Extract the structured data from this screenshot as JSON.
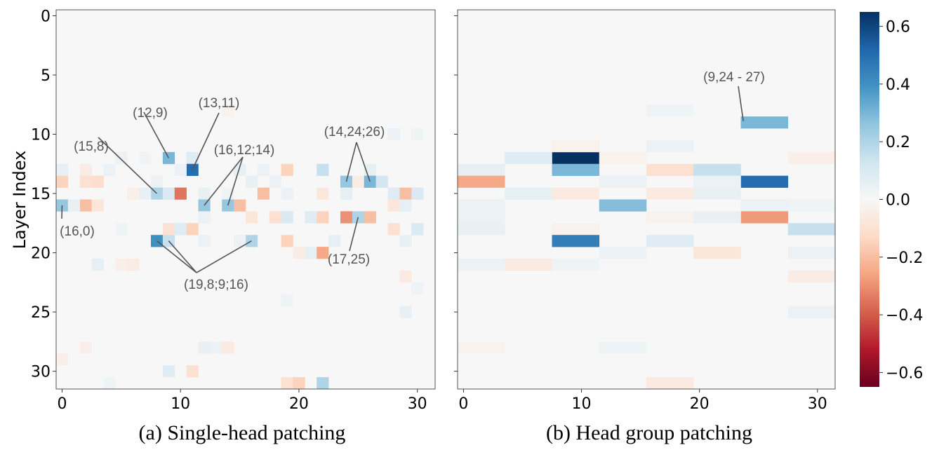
{
  "chart_data": [
    {
      "type": "heatmap",
      "subplot": "a",
      "caption": "(a) Single-head patching",
      "ylabel": "Layer Index",
      "xlabel": "",
      "x_ticks": [
        "0",
        "10",
        "20",
        "30"
      ],
      "y_ticks": [
        "0",
        "5",
        "10",
        "15",
        "20",
        "25",
        "30"
      ],
      "xlim": [
        0,
        31
      ],
      "ylim": [
        0,
        31
      ],
      "background_value": 0.0,
      "cells": [
        {
          "x": 9,
          "y": 12,
          "v": 0.3
        },
        {
          "x": 11,
          "y": 12,
          "v": 0.08
        },
        {
          "x": 5,
          "y": 12,
          "v": 0.04
        },
        {
          "x": 7,
          "y": 12,
          "v": 0.03
        },
        {
          "x": 11,
          "y": 13,
          "v": 0.5
        },
        {
          "x": 0,
          "y": 13,
          "v": 0.05
        },
        {
          "x": 2,
          "y": 13,
          "v": -0.05
        },
        {
          "x": 4,
          "y": 13,
          "v": 0.04
        },
        {
          "x": 10,
          "y": 13,
          "v": 0.04
        },
        {
          "x": 15,
          "y": 13,
          "v": 0.05
        },
        {
          "x": 17,
          "y": 13,
          "v": 0.04
        },
        {
          "x": 19,
          "y": 13,
          "v": -0.15
        },
        {
          "x": 22,
          "y": 13,
          "v": 0.15
        },
        {
          "x": 26,
          "y": 13,
          "v": 0.06
        },
        {
          "x": 0,
          "y": 14,
          "v": -0.15
        },
        {
          "x": 2,
          "y": 14,
          "v": -0.1
        },
        {
          "x": 3,
          "y": 14,
          "v": -0.12
        },
        {
          "x": 24,
          "y": 14,
          "v": 0.25
        },
        {
          "x": 25,
          "y": 14,
          "v": -0.05
        },
        {
          "x": 26,
          "y": 14,
          "v": 0.3
        },
        {
          "x": 27,
          "y": 14,
          "v": 0.12
        },
        {
          "x": 8,
          "y": 14,
          "v": 0.04
        },
        {
          "x": 16,
          "y": 14,
          "v": 0.05
        },
        {
          "x": 18,
          "y": 14,
          "v": 0.04
        },
        {
          "x": 8,
          "y": 15,
          "v": 0.2
        },
        {
          "x": 9,
          "y": 15,
          "v": 0.1
        },
        {
          "x": 10,
          "y": 15,
          "v": -0.35
        },
        {
          "x": 6,
          "y": 15,
          "v": -0.04
        },
        {
          "x": 7,
          "y": 15,
          "v": 0.05
        },
        {
          "x": 12,
          "y": 15,
          "v": 0.05
        },
        {
          "x": 14,
          "y": 15,
          "v": 0.03
        },
        {
          "x": 17,
          "y": 15,
          "v": -0.2
        },
        {
          "x": 19,
          "y": 15,
          "v": 0.04
        },
        {
          "x": 22,
          "y": 15,
          "v": -0.07
        },
        {
          "x": 24,
          "y": 15,
          "v": 0.06
        },
        {
          "x": 28,
          "y": 15,
          "v": 0.08
        },
        {
          "x": 29,
          "y": 15,
          "v": -0.2
        },
        {
          "x": 30,
          "y": 15,
          "v": 0.1
        },
        {
          "x": 0,
          "y": 16,
          "v": 0.25
        },
        {
          "x": 2,
          "y": 16,
          "v": -0.2
        },
        {
          "x": 3,
          "y": 16,
          "v": -0.08
        },
        {
          "x": 1,
          "y": 16,
          "v": 0.05
        },
        {
          "x": 12,
          "y": 16,
          "v": 0.25
        },
        {
          "x": 14,
          "y": 16,
          "v": 0.25
        },
        {
          "x": 15,
          "y": 16,
          "v": -0.2
        },
        {
          "x": 28,
          "y": 16,
          "v": -0.08
        },
        {
          "x": 29,
          "y": 16,
          "v": 0.06
        },
        {
          "x": 24,
          "y": 17,
          "v": -0.3
        },
        {
          "x": 25,
          "y": 17,
          "v": 0.2
        },
        {
          "x": 26,
          "y": 17,
          "v": -0.2
        },
        {
          "x": 16,
          "y": 17,
          "v": -0.08
        },
        {
          "x": 18,
          "y": 17,
          "v": -0.1
        },
        {
          "x": 19,
          "y": 17,
          "v": 0.1
        },
        {
          "x": 21,
          "y": 17,
          "v": 0.08
        },
        {
          "x": 22,
          "y": 17,
          "v": -0.15
        },
        {
          "x": 12,
          "y": 17,
          "v": 0.04
        },
        {
          "x": 9,
          "y": 18,
          "v": -0.1
        },
        {
          "x": 10,
          "y": 18,
          "v": 0.08
        },
        {
          "x": 11,
          "y": 18,
          "v": -0.15
        },
        {
          "x": 28,
          "y": 18,
          "v": -0.1
        },
        {
          "x": 30,
          "y": 18,
          "v": 0.1
        },
        {
          "x": 5,
          "y": 18,
          "v": 0.03
        },
        {
          "x": 8,
          "y": 19,
          "v": 0.4
        },
        {
          "x": 9,
          "y": 19,
          "v": 0.15
        },
        {
          "x": 16,
          "y": 19,
          "v": 0.2
        },
        {
          "x": 19,
          "y": 19,
          "v": -0.15
        },
        {
          "x": 12,
          "y": 19,
          "v": 0.04
        },
        {
          "x": 15,
          "y": 19,
          "v": 0.04
        },
        {
          "x": 23,
          "y": 19,
          "v": 0.06
        },
        {
          "x": 29,
          "y": 19,
          "v": 0.05
        },
        {
          "x": 20,
          "y": 20,
          "v": -0.05
        },
        {
          "x": 21,
          "y": 20,
          "v": 0.06
        },
        {
          "x": 22,
          "y": 20,
          "v": -0.25
        },
        {
          "x": 3,
          "y": 21,
          "v": 0.06
        },
        {
          "x": 5,
          "y": 21,
          "v": -0.04
        },
        {
          "x": 6,
          "y": 21,
          "v": -0.05
        },
        {
          "x": 29,
          "y": 22,
          "v": -0.06
        },
        {
          "x": 29,
          "y": 25,
          "v": 0.05
        },
        {
          "x": 30,
          "y": 23,
          "v": 0.03
        },
        {
          "x": 12,
          "y": 28,
          "v": 0.05
        },
        {
          "x": 13,
          "y": 28,
          "v": 0.04
        },
        {
          "x": 14,
          "y": 28,
          "v": -0.06
        },
        {
          "x": 2,
          "y": 28,
          "v": -0.04
        },
        {
          "x": 0,
          "y": 29,
          "v": -0.04
        },
        {
          "x": 9,
          "y": 30,
          "v": 0.08
        },
        {
          "x": 11,
          "y": 30,
          "v": -0.1
        },
        {
          "x": 19,
          "y": 31,
          "v": -0.1
        },
        {
          "x": 20,
          "y": 31,
          "v": -0.15
        },
        {
          "x": 22,
          "y": 31,
          "v": 0.2
        },
        {
          "x": 28,
          "y": 10,
          "v": 0.04
        },
        {
          "x": 30,
          "y": 10,
          "v": 0.03
        },
        {
          "x": 14,
          "y": 8,
          "v": -0.03
        },
        {
          "x": 19,
          "y": 24,
          "v": 0.03
        },
        {
          "x": 4,
          "y": 31,
          "v": 0.03
        }
      ],
      "annotations": [
        {
          "text": "(12,9)",
          "target": [
            9,
            12
          ]
        },
        {
          "text": "(13,11)",
          "target": [
            11,
            13
          ]
        },
        {
          "text": "(15,8)",
          "target": [
            8,
            15
          ]
        },
        {
          "text": "(16,12;14)",
          "target": [
            [
              12,
              16
            ],
            [
              14,
              16
            ]
          ]
        },
        {
          "text": "(14,24;26)",
          "target": [
            [
              24,
              14
            ],
            [
              26,
              14
            ]
          ]
        },
        {
          "text": "(16,0)",
          "target": [
            0,
            16
          ]
        },
        {
          "text": "(17,25)",
          "target": [
            25,
            17
          ]
        },
        {
          "text": "(19,8;9;16)",
          "target": [
            [
              8,
              19
            ],
            [
              9,
              19
            ],
            [
              16,
              19
            ]
          ]
        }
      ]
    },
    {
      "type": "heatmap",
      "subplot": "b",
      "caption": "(b) Head group patching",
      "xlabel": "",
      "x_ticks": [
        "0",
        "10",
        "20",
        "30"
      ],
      "xlim": [
        0,
        31
      ],
      "ylim": [
        0,
        31
      ],
      "group_size": 4,
      "background_value": 0.0,
      "cells": [
        {
          "g": 2,
          "y": 12,
          "v": 0.65
        },
        {
          "g": 1,
          "y": 12,
          "v": 0.08
        },
        {
          "g": 3,
          "y": 12,
          "v": -0.03
        },
        {
          "g": 7,
          "y": 12,
          "v": -0.04
        },
        {
          "g": 2,
          "y": 13,
          "v": 0.3
        },
        {
          "g": 0,
          "y": 13,
          "v": 0.06
        },
        {
          "g": 4,
          "y": 13,
          "v": -0.1
        },
        {
          "g": 5,
          "y": 13,
          "v": 0.15
        },
        {
          "g": 0,
          "y": 14,
          "v": -0.25
        },
        {
          "g": 6,
          "y": 14,
          "v": 0.5
        },
        {
          "g": 3,
          "y": 14,
          "v": 0.04
        },
        {
          "g": 5,
          "y": 14,
          "v": 0.04
        },
        {
          "g": 1,
          "y": 15,
          "v": 0.06
        },
        {
          "g": 2,
          "y": 15,
          "v": -0.06
        },
        {
          "g": 4,
          "y": 15,
          "v": -0.06
        },
        {
          "g": 5,
          "y": 15,
          "v": 0.05
        },
        {
          "g": 3,
          "y": 16,
          "v": 0.28
        },
        {
          "g": 0,
          "y": 16,
          "v": 0.04
        },
        {
          "g": 6,
          "y": 16,
          "v": 0.04
        },
        {
          "g": 7,
          "y": 16,
          "v": 0.03
        },
        {
          "g": 6,
          "y": 17,
          "v": -0.28
        },
        {
          "g": 0,
          "y": 17,
          "v": 0.04
        },
        {
          "g": 4,
          "y": 17,
          "v": -0.03
        },
        {
          "g": 5,
          "y": 17,
          "v": 0.05
        },
        {
          "g": 7,
          "y": 18,
          "v": 0.15
        },
        {
          "g": 0,
          "y": 18,
          "v": 0.05
        },
        {
          "g": 2,
          "y": 18,
          "v": -0.03
        },
        {
          "g": 2,
          "y": 19,
          "v": 0.45
        },
        {
          "g": 4,
          "y": 19,
          "v": 0.08
        },
        {
          "g": 3,
          "y": 20,
          "v": 0.04
        },
        {
          "g": 5,
          "y": 20,
          "v": -0.08
        },
        {
          "g": 0,
          "y": 21,
          "v": 0.04
        },
        {
          "g": 1,
          "y": 21,
          "v": -0.06
        },
        {
          "g": 2,
          "y": 21,
          "v": 0.03
        },
        {
          "g": 6,
          "y": 9,
          "v": 0.3
        },
        {
          "g": 4,
          "y": 8,
          "v": 0.03
        },
        {
          "g": 2,
          "y": 11,
          "v": -0.03
        },
        {
          "g": 4,
          "y": 11,
          "v": 0.04
        },
        {
          "g": 7,
          "y": 22,
          "v": -0.05
        },
        {
          "g": 7,
          "y": 25,
          "v": 0.04
        },
        {
          "g": 7,
          "y": 20,
          "v": 0.04
        },
        {
          "g": 4,
          "y": 31,
          "v": -0.06
        },
        {
          "g": 0,
          "y": 28,
          "v": -0.03
        },
        {
          "g": 3,
          "y": 28,
          "v": 0.03
        }
      ],
      "annotations": [
        {
          "text": "(9,24 - 27)",
          "target": [
            6,
            9
          ]
        }
      ]
    }
  ],
  "colorbar": {
    "ticks": [
      "0.6",
      "0.4",
      "0.2",
      "0.0",
      "−0.2",
      "−0.4",
      "−0.6"
    ],
    "range": [
      -0.65,
      0.65
    ],
    "colormap": "RdBu",
    "stops": [
      "#67001f",
      "#b2182b",
      "#d6604d",
      "#f4a582",
      "#fddbc7",
      "#f7f7f7",
      "#d1e5f0",
      "#92c5de",
      "#4393c3",
      "#2166ac",
      "#053061"
    ]
  }
}
